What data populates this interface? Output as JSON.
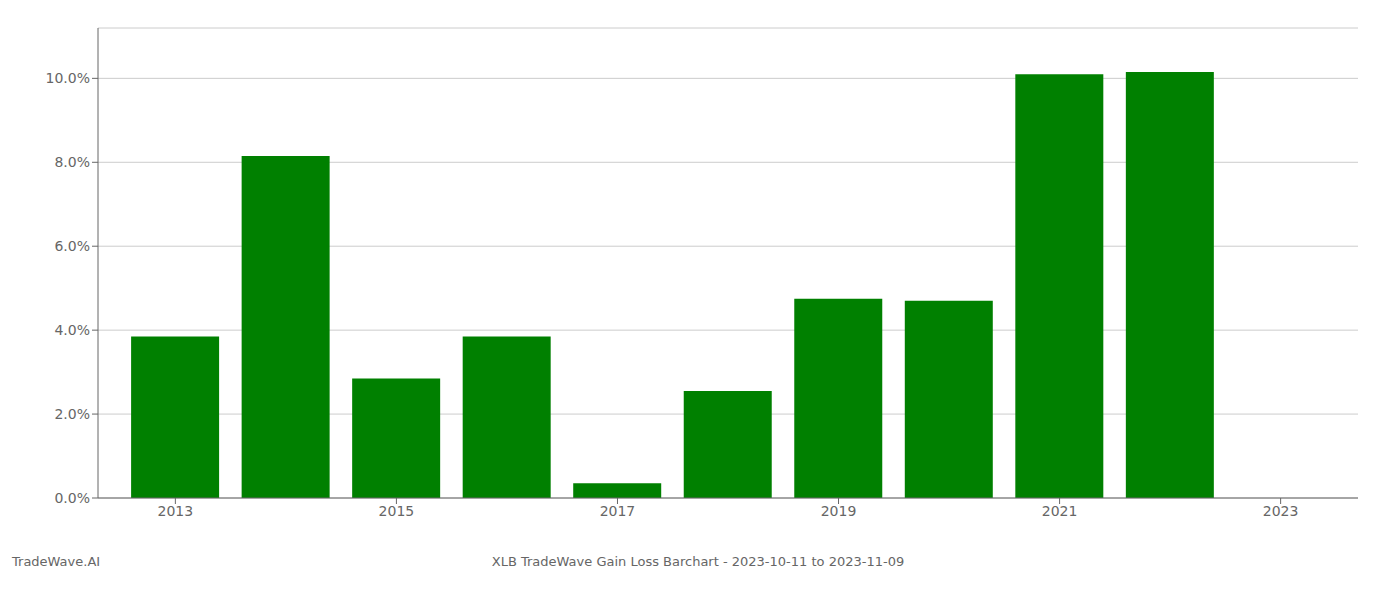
{
  "chart_data": {
    "type": "bar",
    "xlabel": "XLB TradeWave Gain Loss Barchart - 2023-10-11 to 2023-11-09",
    "annotations": [
      {
        "text": "TradeWave.AI"
      }
    ],
    "x": [
      2013,
      2014,
      2015,
      2016,
      2017,
      2018,
      2019,
      2020,
      2021,
      2022,
      2023
    ],
    "values": [
      0.0385,
      0.0815,
      0.0285,
      0.0385,
      0.0035,
      0.0255,
      0.0475,
      0.047,
      0.101,
      0.1015,
      null
    ],
    "color": "#008000",
    "xlim": [
      2012.3,
      2023.7
    ],
    "xticks": [
      2013,
      2015,
      2017,
      2019,
      2021,
      2023
    ],
    "ylim": [
      0,
      0.112
    ],
    "yticks": [
      {
        "value": 0.0,
        "label": "0.0%"
      },
      {
        "value": 0.02,
        "label": "2.0%"
      },
      {
        "value": 0.04,
        "label": "4.0%"
      },
      {
        "value": 0.06,
        "label": "6.0%"
      },
      {
        "value": 0.08,
        "label": "8.0%"
      },
      {
        "value": 0.1,
        "label": "10.0%"
      }
    ],
    "grid": true
  }
}
